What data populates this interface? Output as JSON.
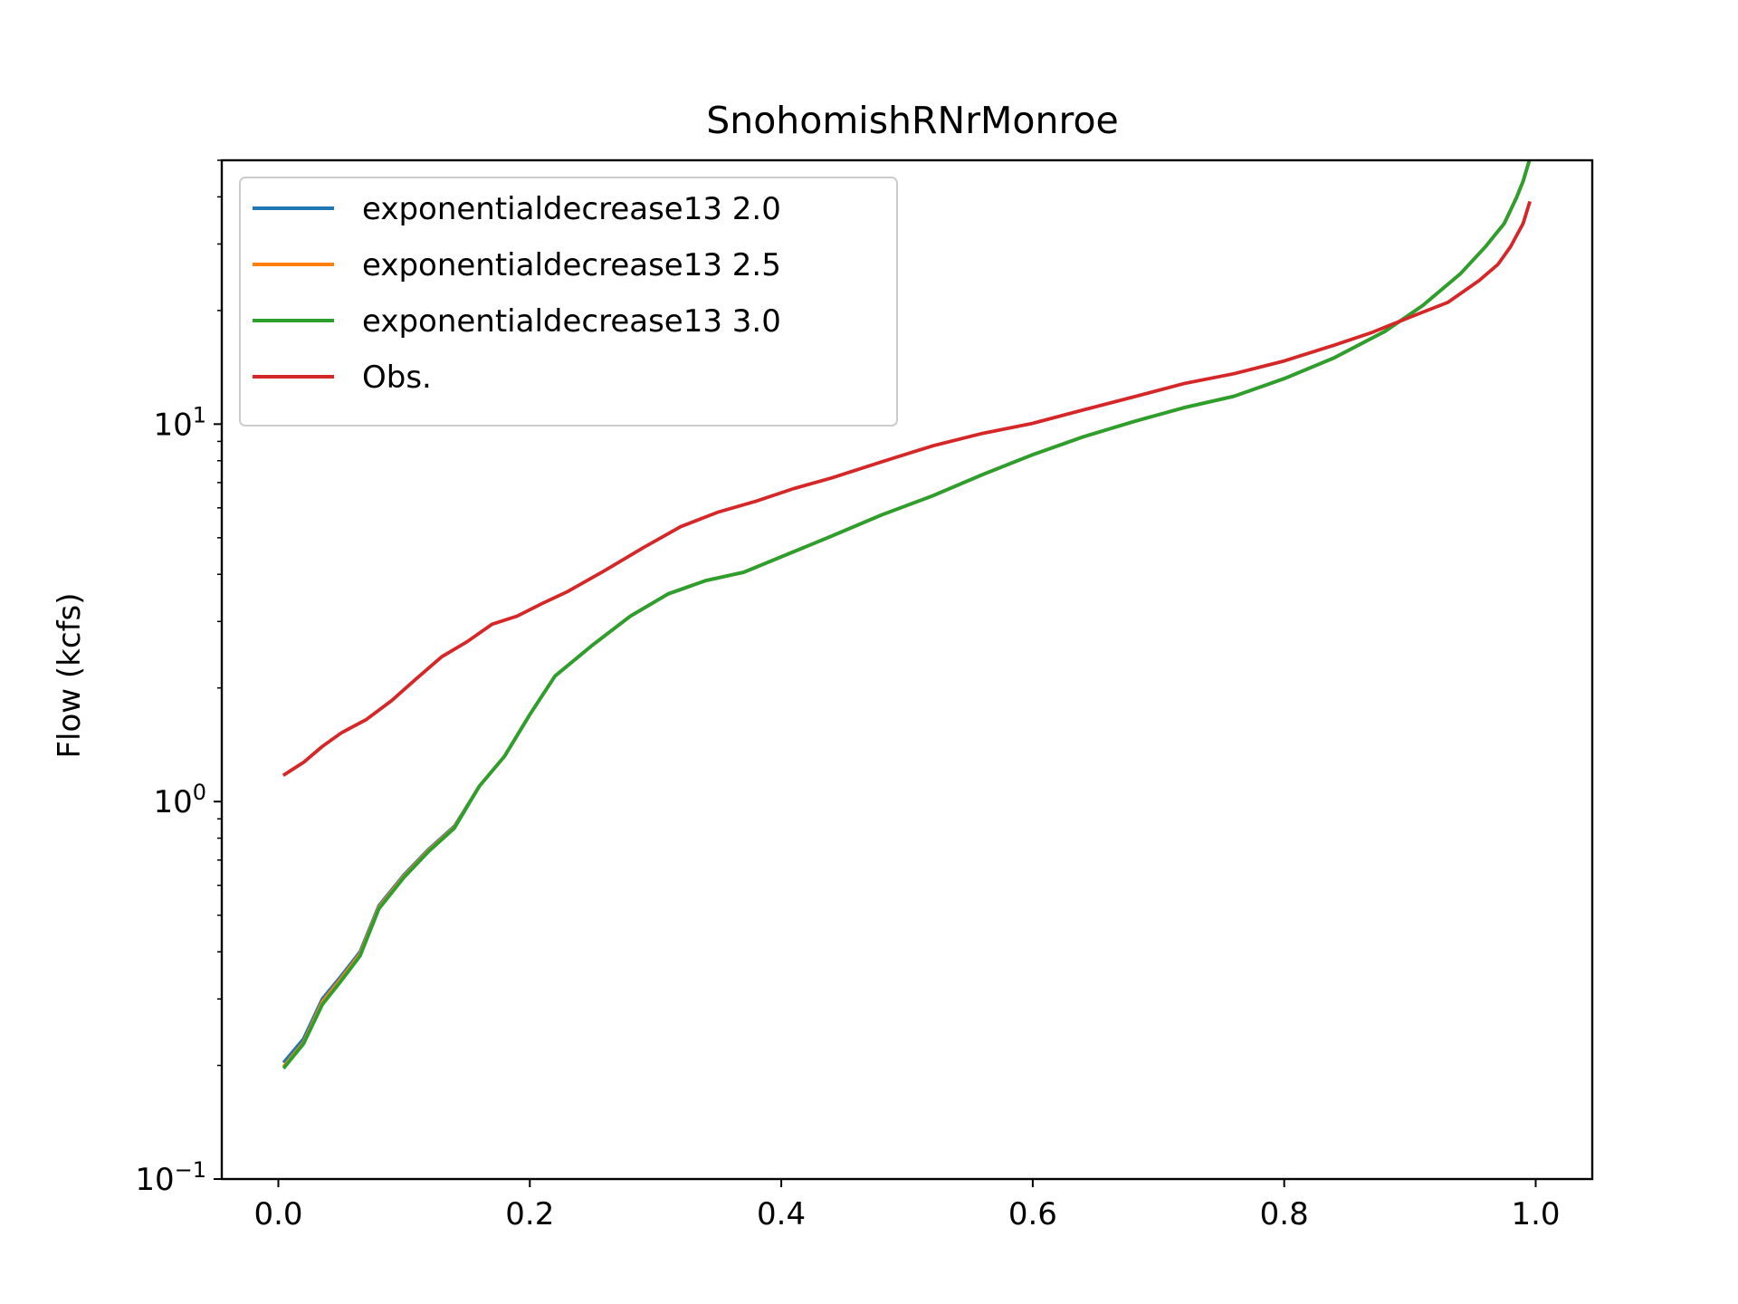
{
  "chart_data": {
    "type": "line",
    "title": "SnohomishRNrMonroe",
    "xlabel": "",
    "ylabel": "Flow (kcfs)",
    "yscale": "log",
    "xlim": [
      -0.045,
      1.045
    ],
    "ylim": [
      0.1,
      50
    ],
    "x_ticks": [
      {
        "value": 0.0,
        "label": "0.0"
      },
      {
        "value": 0.2,
        "label": "0.2"
      },
      {
        "value": 0.4,
        "label": "0.4"
      },
      {
        "value": 0.6,
        "label": "0.6"
      },
      {
        "value": 0.8,
        "label": "0.8"
      },
      {
        "value": 1.0,
        "label": "1.0"
      }
    ],
    "y_ticks": [
      {
        "value": 0.1,
        "base": "10",
        "exp": "−1"
      },
      {
        "value": 1,
        "base": "10",
        "exp": "0"
      },
      {
        "value": 10,
        "base": "10",
        "exp": "1"
      }
    ],
    "grid": false,
    "legend_position": "top-left",
    "series": [
      {
        "name": "exponentialdecrease13 2.0",
        "color": "#1f77b4",
        "x": [
          0.005,
          0.02,
          0.035,
          0.05,
          0.065,
          0.08,
          0.1,
          0.12,
          0.14,
          0.16,
          0.18,
          0.2,
          0.22,
          0.25,
          0.28,
          0.31,
          0.34,
          0.37,
          0.4,
          0.44,
          0.48,
          0.52,
          0.56,
          0.6,
          0.64,
          0.68,
          0.72,
          0.76,
          0.8,
          0.84,
          0.88,
          0.91,
          0.94,
          0.96,
          0.975,
          0.985,
          0.99,
          0.995
        ],
        "y": [
          0.205,
          0.235,
          0.3,
          0.345,
          0.4,
          0.53,
          0.64,
          0.75,
          0.86,
          1.1,
          1.32,
          1.7,
          2.15,
          2.6,
          3.1,
          3.55,
          3.85,
          4.05,
          4.45,
          5.05,
          5.75,
          6.45,
          7.35,
          8.3,
          9.25,
          10.15,
          11.05,
          11.85,
          13.2,
          15.0,
          17.6,
          20.6,
          25.0,
          29.5,
          34.0,
          40.0,
          44.0,
          50.0
        ]
      },
      {
        "name": "exponentialdecrease13 2.5",
        "color": "#ff7f0e",
        "x": [
          0.005,
          0.02,
          0.035,
          0.05,
          0.065,
          0.08,
          0.1,
          0.12,
          0.14,
          0.16,
          0.18,
          0.2,
          0.22,
          0.25,
          0.28,
          0.31,
          0.34,
          0.37,
          0.4,
          0.44,
          0.48,
          0.52,
          0.56,
          0.6,
          0.64,
          0.68,
          0.72,
          0.76,
          0.8,
          0.84,
          0.88,
          0.91,
          0.94,
          0.96,
          0.975,
          0.985,
          0.99,
          0.995
        ],
        "y": [
          0.2,
          0.23,
          0.295,
          0.34,
          0.395,
          0.525,
          0.635,
          0.745,
          0.855,
          1.1,
          1.32,
          1.7,
          2.15,
          2.6,
          3.1,
          3.55,
          3.85,
          4.05,
          4.45,
          5.05,
          5.75,
          6.45,
          7.35,
          8.3,
          9.25,
          10.15,
          11.05,
          11.85,
          13.2,
          15.0,
          17.6,
          20.6,
          25.0,
          29.5,
          34.0,
          40.0,
          44.0,
          50.0
        ]
      },
      {
        "name": "exponentialdecrease13 3.0",
        "color": "#2ca02c",
        "x": [
          0.005,
          0.02,
          0.035,
          0.05,
          0.065,
          0.08,
          0.1,
          0.12,
          0.14,
          0.16,
          0.18,
          0.2,
          0.22,
          0.25,
          0.28,
          0.31,
          0.34,
          0.37,
          0.4,
          0.44,
          0.48,
          0.52,
          0.56,
          0.6,
          0.64,
          0.68,
          0.72,
          0.76,
          0.8,
          0.84,
          0.88,
          0.91,
          0.94,
          0.96,
          0.975,
          0.985,
          0.99,
          0.995
        ],
        "y": [
          0.198,
          0.228,
          0.29,
          0.335,
          0.39,
          0.52,
          0.63,
          0.74,
          0.85,
          1.1,
          1.32,
          1.7,
          2.15,
          2.6,
          3.1,
          3.55,
          3.85,
          4.05,
          4.45,
          5.05,
          5.75,
          6.45,
          7.35,
          8.3,
          9.25,
          10.15,
          11.05,
          11.85,
          13.2,
          15.0,
          17.6,
          20.6,
          25.0,
          29.5,
          34.0,
          40.0,
          44.0,
          50.0
        ]
      },
      {
        "name": "Obs.",
        "color": "#d62728",
        "x": [
          0.005,
          0.02,
          0.035,
          0.05,
          0.07,
          0.09,
          0.11,
          0.13,
          0.15,
          0.17,
          0.19,
          0.21,
          0.23,
          0.26,
          0.29,
          0.32,
          0.35,
          0.38,
          0.41,
          0.44,
          0.48,
          0.52,
          0.56,
          0.6,
          0.64,
          0.68,
          0.72,
          0.76,
          0.8,
          0.84,
          0.87,
          0.9,
          0.93,
          0.955,
          0.97,
          0.98,
          0.99,
          0.995
        ],
        "y": [
          1.18,
          1.27,
          1.4,
          1.52,
          1.65,
          1.85,
          2.12,
          2.42,
          2.65,
          2.95,
          3.1,
          3.35,
          3.6,
          4.1,
          4.7,
          5.35,
          5.85,
          6.25,
          6.75,
          7.2,
          7.95,
          8.75,
          9.45,
          10.05,
          10.9,
          11.8,
          12.8,
          13.6,
          14.7,
          16.2,
          17.5,
          19.2,
          21.0,
          24.0,
          26.5,
          29.5,
          34.0,
          38.5
        ]
      }
    ]
  }
}
